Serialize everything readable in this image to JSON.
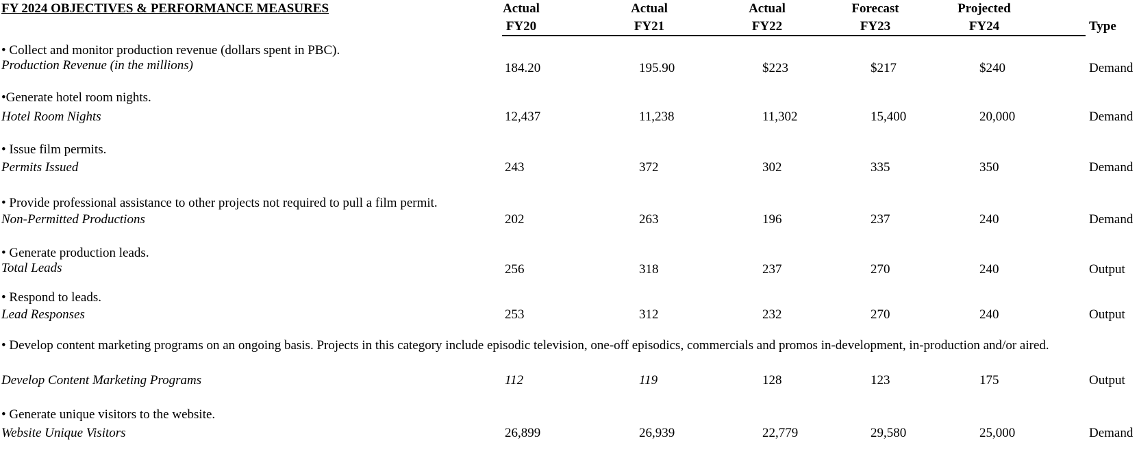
{
  "header": {
    "title": "FY 2024 OBJECTIVES & PERFORMANCE MEASURES",
    "columns": [
      [
        "Actual",
        "FY20"
      ],
      [
        "Actual",
        "FY21"
      ],
      [
        "Actual",
        "FY22"
      ],
      [
        "Forecast",
        "FY23"
      ],
      [
        "Projected",
        "FY24"
      ]
    ],
    "type": "Type"
  },
  "rows": [
    {
      "objective": "• Collect and monitor production revenue (dollars spent in PBC).",
      "measure": "Production Revenue (in the millions)",
      "values": [
        "184.20",
        "195.90",
        "$223",
        "$217",
        "$240"
      ],
      "type": "Demand"
    },
    {
      "objective": "•Generate hotel room nights.",
      "measure": "Hotel Room Nights",
      "values": [
        "12,437",
        "11,238",
        "11,302",
        "15,400",
        "20,000"
      ],
      "type": "Demand"
    },
    {
      "objective": "• Issue film permits.",
      "measure": "Permits Issued",
      "values": [
        "243",
        "372",
        "302",
        "335",
        "350"
      ],
      "type": "Demand"
    },
    {
      "objective": "• Provide professional assistance to other projects not required to pull a film permit.",
      "measure": "Non-Permitted Productions",
      "values": [
        "202",
        "263",
        "196",
        "237",
        "240"
      ],
      "type": "Demand"
    },
    {
      "objective": "• Generate production leads.",
      "measure": "Total Leads",
      "values": [
        "256",
        "318",
        "237",
        "270",
        "240"
      ],
      "type": "Output"
    },
    {
      "objective": "• Respond to leads.",
      "measure": " Lead Responses",
      "values": [
        "253",
        "312",
        "232",
        "270",
        "240"
      ],
      "type": "Output"
    },
    {
      "objective": "• Develop content marketing programs on an ongoing basis. Projects in this category include episodic television, one-off episodics, commercials and promos in-development, in-production and/or aired.",
      "measure": "Develop Content Marketing Programs",
      "values": [
        "112",
        "119",
        "128",
        "123",
        "175"
      ],
      "type": "Output"
    },
    {
      "objective": "• Generate unique visitors to the website.",
      "measure": "Website Unique Visitors",
      "values": [
        "26,899",
        "26,939",
        "22,779",
        "29,580",
        "25,000"
      ],
      "type": "Demand"
    }
  ]
}
